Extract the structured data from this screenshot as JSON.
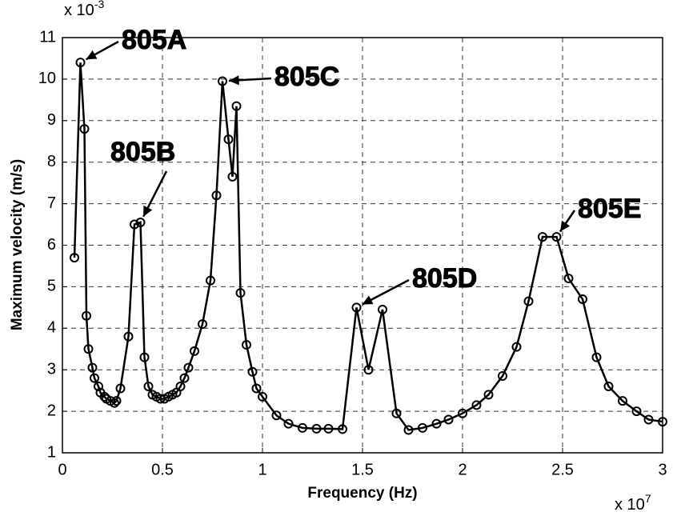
{
  "chart_data": {
    "type": "line",
    "x_label": "Frequency (Hz)",
    "y_label": "Maximum velocity (m/s)",
    "x_multiplier": {
      "base": "x 10",
      "exponent": "7"
    },
    "y_multiplier": {
      "base": "x 10",
      "exponent": "-3"
    },
    "xlim": [
      0,
      3
    ],
    "xticks": [
      0,
      0.5,
      1,
      1.5,
      2,
      2.5,
      3
    ],
    "ylim": [
      1,
      11
    ],
    "yticks": [
      1,
      2,
      3,
      4,
      5,
      6,
      7,
      8,
      9,
      10,
      11
    ],
    "grid": true,
    "series": [
      {
        "color": "#000000",
        "x": [
          0.06,
          0.09,
          0.11,
          0.12,
          0.13,
          0.15,
          0.16,
          0.18,
          0.19,
          0.21,
          0.22,
          0.24,
          0.26,
          0.27,
          0.29,
          0.33,
          0.36,
          0.39,
          0.41,
          0.43,
          0.45,
          0.47,
          0.49,
          0.51,
          0.53,
          0.55,
          0.57,
          0.59,
          0.61,
          0.63,
          0.66,
          0.7,
          0.74,
          0.77,
          0.8,
          0.83,
          0.85,
          0.87,
          0.89,
          0.92,
          0.95,
          0.97,
          1.0,
          1.07,
          1.13,
          1.2,
          1.27,
          1.33,
          1.4,
          1.47,
          1.53,
          1.6,
          1.67,
          1.73,
          1.8,
          1.87,
          1.93,
          2.0,
          2.07,
          2.13,
          2.2,
          2.27,
          2.33,
          2.4,
          2.47,
          2.53,
          2.6,
          2.67,
          2.73,
          2.8,
          2.87,
          2.93,
          3.0
        ],
        "values": [
          5.7,
          10.4,
          8.8,
          4.3,
          3.5,
          3.05,
          2.8,
          2.6,
          2.45,
          2.35,
          2.3,
          2.25,
          2.2,
          2.25,
          2.55,
          3.8,
          6.5,
          6.55,
          3.3,
          2.6,
          2.4,
          2.35,
          2.3,
          2.3,
          2.35,
          2.4,
          2.45,
          2.6,
          2.8,
          3.05,
          3.45,
          4.1,
          5.15,
          7.2,
          9.95,
          8.55,
          7.65,
          9.35,
          4.85,
          3.6,
          2.95,
          2.55,
          2.35,
          1.9,
          1.7,
          1.6,
          1.58,
          1.58,
          1.57,
          4.5,
          3.0,
          4.45,
          1.95,
          1.55,
          1.6,
          1.7,
          1.8,
          1.95,
          2.15,
          2.4,
          2.85,
          3.55,
          4.65,
          6.2,
          6.2,
          5.2,
          4.7,
          3.3,
          2.6,
          2.25,
          2.0,
          1.8,
          1.75
        ]
      }
    ],
    "annotations": [
      "805A",
      "805B",
      "805C",
      "805D",
      "805E"
    ]
  }
}
